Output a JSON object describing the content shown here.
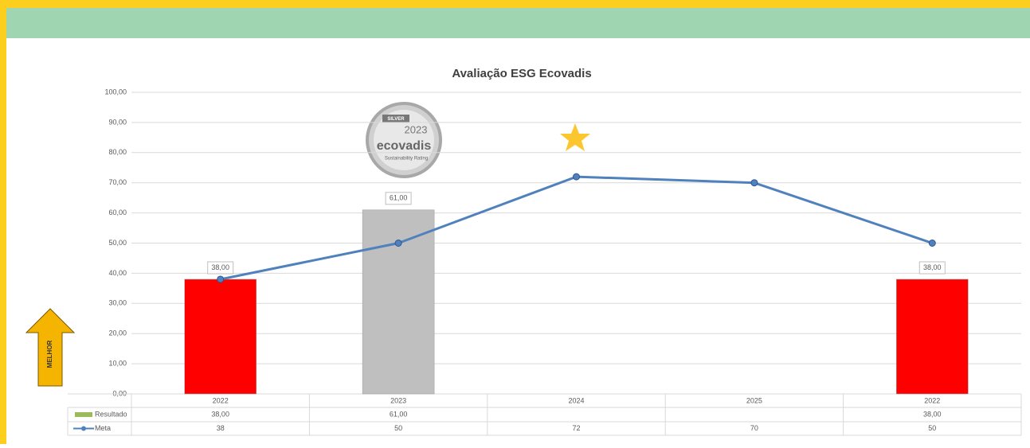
{
  "chart_data": {
    "type": "bar-line",
    "title": "Avaliação ESG Ecovadis",
    "categories": [
      "2022",
      "2023",
      "2024",
      "2025",
      "2022"
    ],
    "series": [
      {
        "name": "Resultado",
        "type": "bar",
        "color": "#9bbb59",
        "colors": [
          "#ff0000",
          "#bfbfbf",
          null,
          null,
          "#ff0000"
        ],
        "values": [
          38,
          61,
          null,
          null,
          38
        ],
        "value_labels": [
          "38,00",
          "61,00",
          null,
          null,
          "38,00"
        ]
      },
      {
        "name": "Meta",
        "type": "line",
        "color": "#4f81bd",
        "values": [
          38,
          50,
          72,
          70,
          50
        ]
      }
    ],
    "ylim": [
      0,
      100
    ],
    "yticks": [
      {
        "value": 0,
        "label": "0,00"
      },
      {
        "value": 10,
        "label": "10,00"
      },
      {
        "value": 20,
        "label": "20,00"
      },
      {
        "value": 30,
        "label": "30,00"
      },
      {
        "value": 40,
        "label": "40,00"
      },
      {
        "value": 50,
        "label": "50,00"
      },
      {
        "value": 60,
        "label": "60,00"
      },
      {
        "value": 70,
        "label": "70,00"
      },
      {
        "value": 80,
        "label": "80,00"
      },
      {
        "value": 90,
        "label": "90,00"
      },
      {
        "value": 100,
        "label": "100,00"
      }
    ],
    "grid": true,
    "arrow_label": "MELHOR",
    "badge": {
      "tier": "SILVER",
      "year": "2023",
      "brand": "ecovadis",
      "caption": "Sustainability Rating"
    }
  }
}
